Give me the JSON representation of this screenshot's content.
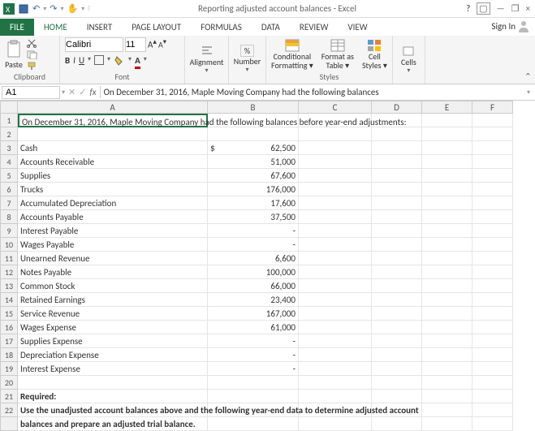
{
  "app": {
    "title": "Reporting adjusted account balances - Excel",
    "help": "?",
    "signin": "Sign In"
  },
  "tabs": {
    "file": "FILE",
    "home": "HOME",
    "insert": "INSERT",
    "page_layout": "PAGE LAYOUT",
    "formulas": "FORMULAS",
    "data": "DATA",
    "review": "REVIEW",
    "view": "VIEW"
  },
  "ribbon": {
    "paste": "Paste",
    "clipboard": "Clipboard",
    "font_name": "Calibri",
    "font_size": "11",
    "font_label": "Font",
    "alignment": "Alignment",
    "number": "Number",
    "pct": "%",
    "conditional1": "Conditional",
    "conditional2": "Formatting",
    "formatas1": "Format as",
    "formatas2": "Table",
    "cellstyles1": "Cell",
    "cellstyles2": "Styles",
    "cells": "Cells",
    "styles_label": "Styles"
  },
  "formula_bar": {
    "name_box": "A1",
    "fx": "fx",
    "content": "On December 31, 2016, Maple Moving Company had the following balances"
  },
  "cols": [
    "A",
    "B",
    "C",
    "D",
    "E",
    "F"
  ],
  "rows": [
    {
      "n": 1,
      "a": "On December 31, 2016, Maple Moving Company had the following balances before year-end adjustments:"
    },
    {
      "n": 2
    },
    {
      "n": 3,
      "a": "Cash",
      "b": "62,500",
      "dollar": "$"
    },
    {
      "n": 4,
      "a": "Accounts Receivable",
      "b": "51,000"
    },
    {
      "n": 5,
      "a": "Supplies",
      "b": "67,600"
    },
    {
      "n": 6,
      "a": "Trucks",
      "b": "176,000"
    },
    {
      "n": 7,
      "a": "Accumulated Depreciation",
      "b": "17,600"
    },
    {
      "n": 8,
      "a": "Accounts Payable",
      "b": "37,500"
    },
    {
      "n": 9,
      "a": "Interest Payable",
      "b": "-"
    },
    {
      "n": 10,
      "a": "Wages Payable",
      "b": "-"
    },
    {
      "n": 11,
      "a": "Unearned Revenue",
      "b": "6,600"
    },
    {
      "n": 12,
      "a": "Notes Payable",
      "b": "100,000"
    },
    {
      "n": 13,
      "a": "Common Stock",
      "b": "66,000"
    },
    {
      "n": 14,
      "a": "Retained Earnings",
      "b": "23,400"
    },
    {
      "n": 15,
      "a": "Service Revenue",
      "b": "167,000"
    },
    {
      "n": 16,
      "a": "Wages Expense",
      "b": "61,000"
    },
    {
      "n": 17,
      "a": "Supplies Expense",
      "b": "-"
    },
    {
      "n": 18,
      "a": "Depreciation Expense",
      "b": "-"
    },
    {
      "n": 19,
      "a": "Interest Expense",
      "b": "-"
    },
    {
      "n": 20
    },
    {
      "n": 21,
      "a": "Required:",
      "bold": true
    },
    {
      "n": 22,
      "a": "Use the unadjusted account balances above and the following year-end data to determine adjusted account",
      "bold": true
    },
    {
      "n": "",
      "a": "balances and prepare an adjusted trial balance.",
      "bold": true
    }
  ]
}
